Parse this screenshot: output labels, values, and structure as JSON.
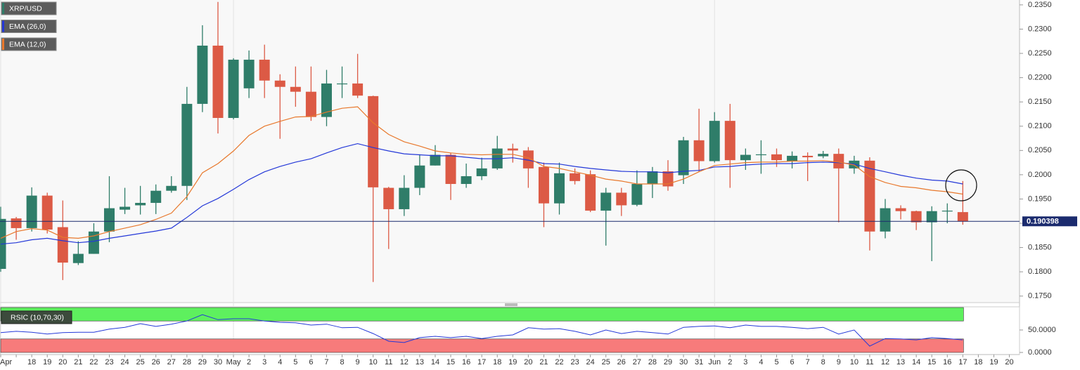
{
  "chart_data": [
    {
      "type": "candlestick",
      "categories": [
        "Apr",
        null,
        "18",
        "19",
        "20",
        "21",
        "22",
        "23",
        "24",
        "25",
        "26",
        "27",
        "28",
        "29",
        "30",
        "May",
        "2",
        "3",
        "4",
        "5",
        "6",
        "7",
        "8",
        "9",
        "10",
        "11",
        "12",
        "13",
        "14",
        "15",
        "16",
        "17",
        "18",
        "19",
        "20",
        "21",
        "22",
        "23",
        "24",
        "25",
        "26",
        "27",
        "28",
        "29",
        "30",
        "31",
        "Jun",
        "2",
        "3",
        "4",
        "5",
        "6",
        "7",
        "8",
        "9",
        "10",
        "11",
        "12",
        "13",
        "14",
        "15",
        "16",
        "17",
        "18",
        "19",
        "20"
      ],
      "ohlc": {
        "name": "XRP/USD",
        "up_color": "#2f7d69",
        "down_color": "#dc5a45",
        "open": [
          0.1806,
          0.191,
          0.189,
          0.1957,
          0.1892,
          0.1818,
          0.1837,
          0.1883,
          0.1928,
          0.1937,
          0.1942,
          0.1967,
          0.1977,
          0.2146,
          0.2266,
          0.2117,
          0.2178,
          0.2237,
          0.2194,
          0.2181,
          0.2171,
          0.2119,
          0.2188,
          0.2188,
          0.2162,
          0.1973,
          0.1929,
          0.1973,
          0.2019,
          0.2041,
          0.1981,
          0.1997,
          0.2013,
          0.2054,
          0.205,
          0.2016,
          0.1941,
          0.2003,
          0.2001,
          0.1926,
          0.1963,
          0.1938,
          0.1981,
          0.2007,
          0.1999,
          0.2071,
          0.2028,
          0.2111,
          0.203,
          0.2042,
          0.2042,
          0.2028,
          0.2039,
          0.2038,
          0.2043,
          0.2013,
          0.2029,
          0.1883,
          0.1931,
          0.1925,
          0.1902,
          0.1926,
          0.1923,
          null,
          null,
          null
        ],
        "high": [
          0.1934,
          0.1913,
          0.1974,
          0.1963,
          0.1947,
          0.1863,
          0.19,
          0.1997,
          0.1973,
          0.1977,
          0.198,
          0.1997,
          0.2181,
          0.2308,
          0.2356,
          0.224,
          0.2256,
          0.2268,
          0.2207,
          0.2223,
          0.2223,
          0.2216,
          0.2223,
          0.2249,
          0.2163,
          0.1975,
          0.1999,
          0.2042,
          0.2061,
          0.2045,
          0.2023,
          0.2035,
          0.208,
          0.2064,
          0.2057,
          0.2025,
          0.2025,
          0.2013,
          0.2009,
          0.1973,
          0.1973,
          0.2009,
          0.2016,
          0.203,
          0.2078,
          0.2136,
          0.2129,
          0.2146,
          0.2054,
          0.2071,
          0.2054,
          0.2048,
          0.2046,
          0.2049,
          0.2054,
          0.2039,
          0.2036,
          0.195,
          0.1937,
          0.1926,
          0.1935,
          0.1941,
          0.1987,
          null,
          null,
          null
        ],
        "low": [
          0.18,
          0.1866,
          0.1883,
          0.1879,
          0.1783,
          0.1814,
          0.1837,
          0.1861,
          0.1919,
          0.1918,
          0.1919,
          0.1963,
          0.1948,
          0.2129,
          0.2085,
          0.2114,
          0.2158,
          0.2158,
          0.2074,
          0.214,
          0.2111,
          0.21,
          0.2158,
          0.2158,
          0.1779,
          0.1847,
          0.1915,
          0.1958,
          0.2019,
          0.1948,
          0.1973,
          0.1989,
          0.201,
          0.2025,
          0.1973,
          0.1892,
          0.1918,
          0.198,
          0.1923,
          0.1854,
          0.1915,
          0.1935,
          0.1952,
          0.1967,
          0.1981,
          0.2006,
          0.2025,
          0.1973,
          0.201,
          0.2002,
          0.2016,
          0.2013,
          0.1987,
          0.2034,
          0.1902,
          0.2002,
          0.1844,
          0.1869,
          0.1908,
          0.1886,
          0.1822,
          0.19,
          0.1897,
          null,
          null,
          null
        ],
        "close": [
          0.1909,
          0.189,
          0.1957,
          0.1887,
          0.1819,
          0.1837,
          0.1883,
          0.1931,
          0.1934,
          0.1942,
          0.1967,
          0.1977,
          0.2146,
          0.2266,
          0.2117,
          0.2237,
          0.2237,
          0.2194,
          0.2181,
          0.2171,
          0.2119,
          0.2188,
          0.2188,
          0.2163,
          0.1974,
          0.1929,
          0.1973,
          0.2019,
          0.2041,
          0.1981,
          0.1997,
          0.2013,
          0.2054,
          0.205,
          0.2013,
          0.1941,
          0.2003,
          0.1987,
          0.1926,
          0.1963,
          0.1937,
          0.1981,
          0.2007,
          0.1976,
          0.2071,
          0.2028,
          0.2111,
          0.203,
          0.2041,
          0.2042,
          0.203,
          0.2039,
          0.2036,
          0.2043,
          0.2013,
          0.2029,
          0.1883,
          0.1931,
          0.1925,
          0.1902,
          0.1925,
          0.1926,
          0.1904,
          null,
          null,
          null
        ]
      },
      "series": [
        {
          "name": "EMA (26,0)",
          "color": "#2438d8",
          "values": [
            0.1857,
            0.186,
            0.1866,
            0.1869,
            0.1864,
            0.186,
            0.1863,
            0.1869,
            0.1874,
            0.1879,
            0.1884,
            0.189,
            0.1912,
            0.1936,
            0.1951,
            0.197,
            0.199,
            0.2006,
            0.2017,
            0.2026,
            0.2033,
            0.2045,
            0.2056,
            0.2064,
            0.2056,
            0.2049,
            0.2043,
            0.2041,
            0.2039,
            0.2039,
            0.2036,
            0.2033,
            0.2033,
            0.2035,
            0.203,
            0.2023,
            0.2022,
            0.2017,
            0.2013,
            0.201,
            0.2007,
            0.2006,
            0.2006,
            0.2004,
            0.2007,
            0.2009,
            0.2016,
            0.2017,
            0.202,
            0.2022,
            0.2023,
            0.2023,
            0.2025,
            0.2026,
            0.2025,
            0.2022,
            0.2013,
            0.2006,
            0.1999,
            0.1993,
            0.1989,
            0.1987,
            0.1981,
            null,
            null,
            null
          ]
        },
        {
          "name": "EMA (12,0)",
          "color": "#e8782c",
          "values": [
            0.1869,
            0.1883,
            0.1889,
            0.1886,
            0.1871,
            0.1869,
            0.1874,
            0.1883,
            0.189,
            0.1897,
            0.1908,
            0.1921,
            0.1955,
            0.2004,
            0.2023,
            0.2049,
            0.2081,
            0.21,
            0.211,
            0.2119,
            0.212,
            0.2129,
            0.2137,
            0.214,
            0.2107,
            0.2083,
            0.2068,
            0.2059,
            0.2049,
            0.2045,
            0.2042,
            0.2041,
            0.2042,
            0.2042,
            0.2035,
            0.2017,
            0.2013,
            0.2006,
            0.1999,
            0.1991,
            0.1987,
            0.1981,
            0.1981,
            0.1981,
            0.1991,
            0.2006,
            0.2019,
            0.2022,
            0.2025,
            0.2026,
            0.2026,
            0.2028,
            0.2028,
            0.2029,
            0.2026,
            0.202,
            0.1996,
            0.1984,
            0.1976,
            0.1973,
            0.1968,
            0.1965,
            0.196,
            null,
            null,
            null
          ]
        }
      ],
      "ylim": [
        0.1738,
        0.236
      ],
      "yticks": [
        {
          "value": 0.235,
          "label": "0.2350"
        },
        {
          "value": 0.23,
          "label": "0.2300"
        },
        {
          "value": 0.225,
          "label": "0.2250"
        },
        {
          "value": 0.22,
          "label": "0.2200"
        },
        {
          "value": 0.215,
          "label": "0.2150"
        },
        {
          "value": 0.21,
          "label": "0.2100"
        },
        {
          "value": 0.205,
          "label": "0.2050"
        },
        {
          "value": 0.2,
          "label": "0.2000"
        },
        {
          "value": 0.195,
          "label": "0.1950"
        },
        {
          "value": 0.19,
          "label": "0.1900"
        },
        {
          "value": 0.185,
          "label": "0.1850"
        },
        {
          "value": 0.18,
          "label": "0.1800"
        },
        {
          "value": 0.175,
          "label": "0.1750"
        }
      ],
      "last_price": 0.190398,
      "last_price_color": "#1b2b6e"
    },
    {
      "type": "line",
      "title": "RSIC (10,70,30)",
      "series": [
        {
          "color": "#2438d8",
          "values": [
            44,
            47,
            45,
            41,
            44,
            45,
            45,
            52,
            56,
            64,
            58,
            63,
            70,
            84,
            73,
            75,
            75,
            70,
            67,
            66,
            61,
            63,
            55,
            56,
            42,
            25,
            22,
            33,
            36,
            33,
            36,
            31,
            36,
            39,
            55,
            52,
            53,
            47,
            39,
            50,
            42,
            47,
            44,
            41,
            56,
            58,
            59,
            55,
            61,
            58,
            58,
            56,
            53,
            56,
            41,
            50,
            14,
            31,
            30,
            28,
            33,
            31,
            28,
            null,
            null,
            null
          ]
        }
      ],
      "ylim": [
        0,
        100
      ],
      "yticks": [
        {
          "value": 50,
          "label": "50.0000"
        },
        {
          "value": 0,
          "label": "0.0000"
        }
      ],
      "bands": [
        {
          "from": 70,
          "to": 100,
          "color": "#5ef05e"
        },
        {
          "from": 0,
          "to": 30,
          "color": "#f77b7b"
        }
      ]
    }
  ]
}
